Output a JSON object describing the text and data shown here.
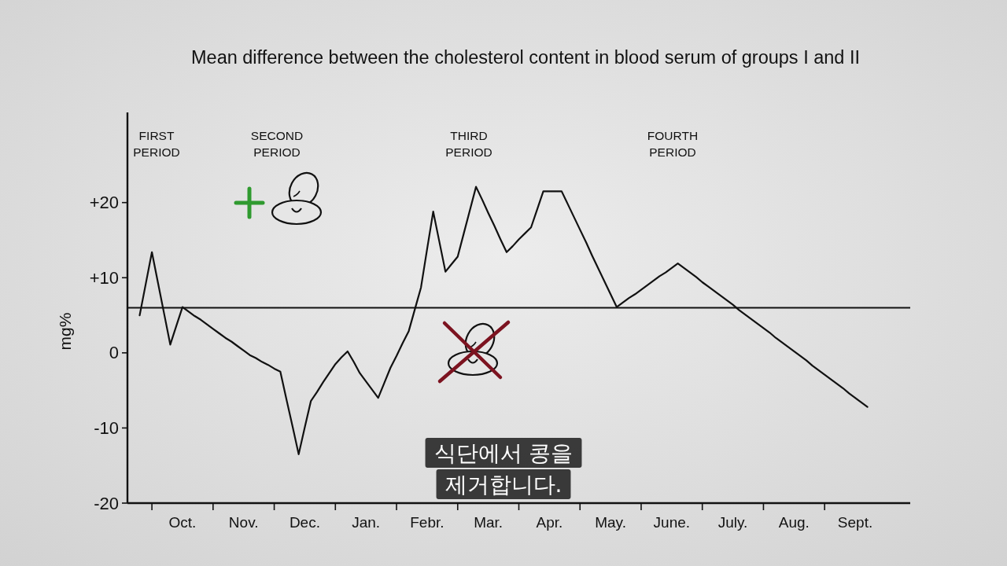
{
  "chart_data": {
    "type": "line",
    "title": "Mean difference between the cholesterol content in blood serum of groups I and II",
    "ylabel": "mg%",
    "categories": [
      null,
      null,
      null,
      null,
      null,
      null,
      null,
      null,
      null,
      "Oct.",
      null,
      null,
      null,
      null,
      null,
      null,
      null,
      null,
      null,
      "Nov.",
      null,
      null,
      null,
      null,
      null,
      null,
      null,
      null,
      null,
      "Dec.",
      null,
      null,
      null,
      null,
      null,
      null,
      null,
      null,
      null,
      "Jan.",
      null,
      null,
      null,
      null,
      null,
      null,
      null,
      null,
      null,
      "Febr.",
      null,
      null,
      null,
      null,
      null,
      null,
      null,
      null,
      null,
      "Mar.",
      null,
      null,
      null,
      null,
      null,
      null,
      null,
      null,
      null,
      "Apr.",
      null,
      null,
      null,
      null,
      null,
      null,
      null,
      null,
      null,
      "May.",
      null,
      null,
      null,
      null,
      null,
      null,
      null,
      null,
      null,
      "June.",
      null,
      null,
      null,
      null,
      null,
      null,
      null,
      null,
      null,
      "July.",
      null,
      null,
      null,
      null,
      null,
      null,
      null,
      null,
      null,
      "Aug.",
      null,
      null,
      null,
      null,
      null,
      null,
      null,
      null,
      null,
      "Sept.",
      null,
      null,
      null,
      null,
      null,
      null,
      null,
      null,
      null
    ],
    "values": [
      null,
      null,
      5.0,
      9.2,
      13.4,
      9.3,
      5.2,
      1.1,
      3.6,
      6.1,
      5.5,
      4.9,
      4.4,
      3.8,
      3.2,
      2.6,
      2.0,
      1.5,
      0.9,
      0.3,
      -0.3,
      -0.7,
      -1.2,
      -1.6,
      -2.1,
      -2.5,
      -6.2,
      -9.8,
      -13.5,
      -9.9,
      -6.4,
      -5.2,
      -3.9,
      -2.7,
      -1.5,
      -0.6,
      0.2,
      -1.2,
      -2.7,
      -3.8,
      -4.9,
      -6.0,
      -4.0,
      -2.0,
      -0.4,
      1.3,
      2.9,
      5.8,
      8.7,
      13.8,
      18.8,
      14.8,
      10.8,
      11.8,
      12.8,
      15.9,
      19.0,
      22.1,
      20.4,
      18.6,
      16.9,
      15.1,
      13.4,
      14.2,
      15.1,
      15.9,
      16.7,
      19.1,
      21.5,
      21.5,
      21.5,
      21.5,
      19.8,
      18.1,
      16.4,
      14.7,
      12.9,
      11.2,
      9.5,
      7.8,
      6.1,
      6.7,
      7.3,
      7.8,
      8.4,
      9.0,
      9.6,
      10.2,
      10.7,
      11.3,
      11.9,
      11.3,
      10.7,
      10.1,
      9.4,
      8.8,
      8.2,
      7.6,
      7.0,
      6.4,
      5.7,
      5.1,
      4.5,
      3.9,
      3.3,
      2.7,
      2.0,
      1.4,
      0.8,
      0.2,
      -0.4,
      -1.0,
      -1.7,
      -2.3,
      -2.9,
      -3.5,
      -4.1,
      -4.7,
      -5.4,
      -6.0,
      -6.6,
      -7.2,
      null,
      null,
      null,
      null,
      null,
      null,
      null
    ],
    "color": "#111111",
    "ylim": [
      -20,
      32
    ],
    "yticks": [
      -20,
      -10,
      0,
      {
        "value": 10,
        "label": "+10"
      },
      {
        "value": 20,
        "label": "+20"
      }
    ],
    "ref_lines": [
      {
        "axis": "y",
        "value": 6,
        "color": "#111111"
      }
    ],
    "annotations": [
      "FIRST PERIOD",
      "SECOND PERIOD",
      "THIRD PERIOD",
      "FOURTH PERIOD",
      "식단에서 콩을\n제거합니다."
    ]
  }
}
